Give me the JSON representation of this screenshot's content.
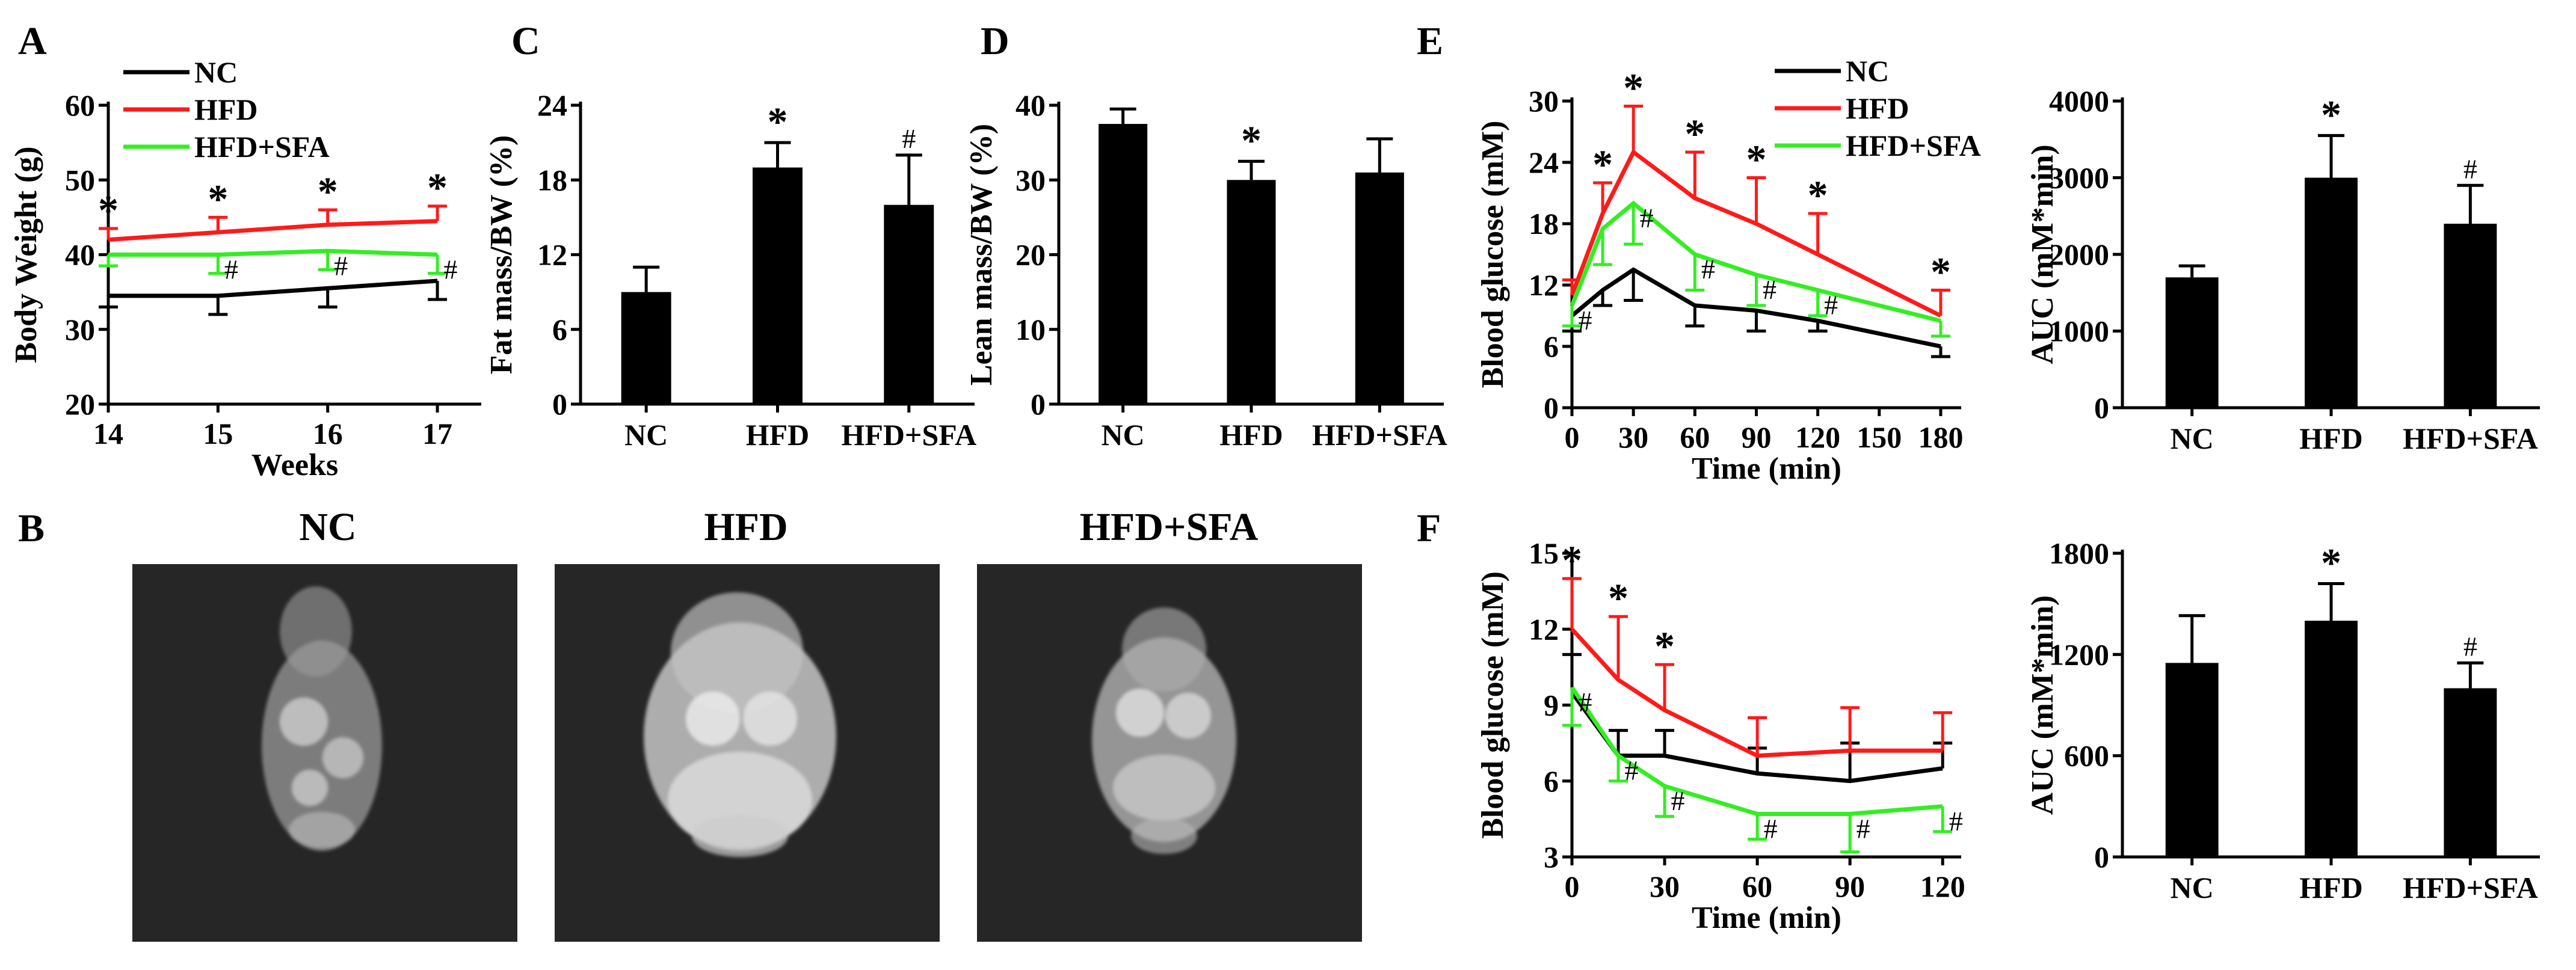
{
  "colors": {
    "NC": "#000000",
    "HFD": "#ff1a1a",
    "HFD+SFA": "#33ee22",
    "bar": "#000000"
  },
  "chart_data": [
    {
      "id": "A",
      "type": "line",
      "panel_label": "A",
      "xlabel": "Weeks",
      "ylabel": "Body Weight (g)",
      "x": [
        14,
        15,
        16,
        17
      ],
      "xticks": [
        "14",
        "15",
        "16",
        "17"
      ],
      "xlim": [
        14,
        17.4
      ],
      "ylim": [
        20,
        60
      ],
      "yticks": [
        "20",
        "30",
        "40",
        "50",
        "60"
      ],
      "legend": [
        "NC",
        "HFD",
        "HFD+SFA"
      ],
      "legend_position": "top-left",
      "series": [
        {
          "name": "NC",
          "values": [
            34.5,
            34.5,
            35.5,
            36.5
          ],
          "err": [
            1.5,
            2.5,
            2.5,
            2.5
          ],
          "err_dir": "down"
        },
        {
          "name": "HFD",
          "values": [
            42,
            43,
            44,
            44.5
          ],
          "err": [
            1.5,
            2,
            2,
            2
          ],
          "err_dir": "up",
          "marks": [
            "*",
            "*",
            "*",
            "*"
          ]
        },
        {
          "name": "HFD+SFA",
          "values": [
            40,
            40,
            40.5,
            40
          ],
          "err": [
            1.5,
            2.5,
            2.5,
            2.5
          ],
          "err_dir": "down",
          "marks": [
            "",
            "#",
            "#",
            "#"
          ]
        }
      ]
    },
    {
      "id": "C",
      "type": "bar",
      "panel_label": "C",
      "categories": [
        "NC",
        "HFD",
        "HFD+SFA"
      ],
      "values": [
        9,
        19,
        16
      ],
      "err": [
        2,
        2,
        4
      ],
      "marks": [
        "",
        "*",
        "#"
      ],
      "ylabel": "Fat mass/BW (%)",
      "ylim": [
        0,
        24
      ],
      "yticks": [
        "0",
        "6",
        "12",
        "18",
        "24"
      ]
    },
    {
      "id": "D",
      "type": "bar",
      "panel_label": "D",
      "categories": [
        "NC",
        "HFD",
        "HFD+SFA"
      ],
      "values": [
        37.5,
        30,
        31
      ],
      "err": [
        2,
        2.5,
        4.5
      ],
      "marks": [
        "",
        "*",
        ""
      ],
      "ylabel": "Lean mass/BW (%)",
      "ylim": [
        0,
        40
      ],
      "yticks": [
        "0",
        "10",
        "20",
        "30",
        "40"
      ]
    },
    {
      "id": "E1",
      "type": "line",
      "panel_label": "E",
      "xlabel": "Time (min)",
      "ylabel": "Blood glucose (mM)",
      "x": [
        0,
        15,
        30,
        60,
        90,
        120,
        180
      ],
      "xticks": [
        "0",
        "30",
        "60",
        "90",
        "120",
        "150",
        "180"
      ],
      "xlim": [
        0,
        190
      ],
      "ylim": [
        0,
        30
      ],
      "yticks": [
        "0",
        "6",
        "12",
        "18",
        "24",
        "30"
      ],
      "legend": [
        "NC",
        "HFD",
        "HFD+SFA"
      ],
      "legend_position": "top-right",
      "series": [
        {
          "name": "NC",
          "values": [
            9,
            11.5,
            13.5,
            10,
            9.5,
            8.5,
            6
          ],
          "err": [
            1.5,
            1.5,
            3,
            2,
            2,
            1,
            1
          ],
          "err_dir": "down"
        },
        {
          "name": "HFD",
          "values": [
            11,
            19,
            25,
            20.5,
            18,
            15,
            9
          ],
          "err": [
            1.5,
            3,
            4.5,
            4.5,
            4.5,
            4,
            2.5
          ],
          "err_dir": "up",
          "marks": [
            "",
            "*",
            "*",
            "*",
            "*",
            "*",
            "*"
          ]
        },
        {
          "name": "HFD+SFA",
          "values": [
            10,
            17.5,
            20,
            15,
            13,
            11.5,
            8.5
          ],
          "err": [
            2,
            3.5,
            4,
            3.5,
            3,
            2.5,
            1.5
          ],
          "err_dir": "down",
          "marks": [
            "#",
            "",
            "#",
            "#",
            "#",
            "#",
            ""
          ]
        }
      ]
    },
    {
      "id": "E2",
      "type": "bar",
      "categories": [
        "NC",
        "HFD",
        "HFD+SFA"
      ],
      "values": [
        1700,
        3000,
        2400
      ],
      "err": [
        150,
        550,
        500
      ],
      "marks": [
        "",
        "*",
        "#"
      ],
      "ylabel": "AUC (mM*min)",
      "ylim": [
        0,
        4000
      ],
      "yticks": [
        "0",
        "1000",
        "2000",
        "3000",
        "4000"
      ]
    },
    {
      "id": "F1",
      "type": "line",
      "panel_label": "F",
      "xlabel": "Time (min)",
      "ylabel": "Blood glucose (mM)",
      "x": [
        0,
        15,
        30,
        60,
        90,
        120
      ],
      "xticks": [
        "0",
        "30",
        "60",
        "90",
        "120"
      ],
      "xlim": [
        0,
        126
      ],
      "ylim": [
        3,
        15
      ],
      "yticks": [
        "3",
        "6",
        "9",
        "12",
        "15"
      ],
      "series": [
        {
          "name": "NC",
          "values": [
            9.5,
            7,
            7,
            6.3,
            6,
            6.5
          ],
          "err": [
            1.5,
            1,
            1,
            1,
            1.5,
            1
          ],
          "err_dir": "up"
        },
        {
          "name": "HFD",
          "values": [
            12,
            10,
            8.8,
            7,
            7.2,
            7.2
          ],
          "err": [
            2,
            2.5,
            1.8,
            1.5,
            1.7,
            1.5
          ],
          "err_dir": "up",
          "marks": [
            "*",
            "*",
            "*",
            "",
            "",
            ""
          ]
        },
        {
          "name": "HFD+SFA",
          "values": [
            9.7,
            7,
            5.8,
            4.7,
            4.7,
            5
          ],
          "err": [
            1.5,
            1,
            1.2,
            1,
            1.5,
            1
          ],
          "err_dir": "down",
          "marks": [
            "#",
            "#",
            "#",
            "#",
            "#",
            "#"
          ]
        }
      ]
    },
    {
      "id": "F2",
      "type": "bar",
      "categories": [
        "NC",
        "HFD",
        "HFD+SFA"
      ],
      "values": [
        1150,
        1400,
        1000
      ],
      "err": [
        280,
        220,
        150
      ],
      "marks": [
        "",
        "*",
        "#"
      ],
      "ylabel": "AUC (mM*min)",
      "ylim": [
        0,
        1800
      ],
      "yticks": [
        "0",
        "600",
        "1200",
        "1800"
      ]
    }
  ],
  "panel_B": {
    "panel_label": "B",
    "captions": [
      "NC",
      "HFD",
      "HFD+SFA"
    ]
  }
}
